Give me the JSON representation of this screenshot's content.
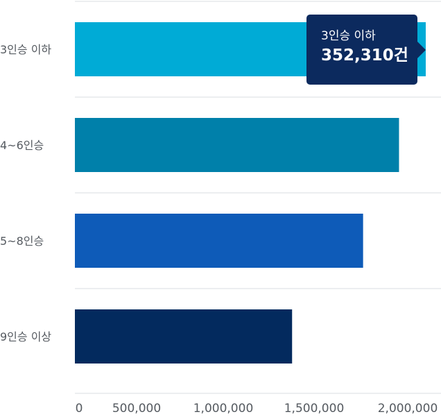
{
  "chart_data": {
    "type": "bar",
    "orientation": "horizontal",
    "categories": [
      "3인승 이하",
      "4~6인승",
      "5~8인승",
      "9인승 이상"
    ],
    "values": [
      2100000,
      1940000,
      1725000,
      1300000
    ],
    "colors": [
      "#00abd6",
      "#0080aa",
      "#0e5bb8",
      "#032a5e"
    ],
    "xlim": [
      0,
      2100000
    ],
    "xticks": [
      0,
      500000,
      1000000,
      1500000,
      2000000
    ],
    "xtick_labels": [
      "0",
      "500,000",
      "1,000,000",
      "1,500,000",
      "2,000,000"
    ],
    "grid": true,
    "title": "",
    "xlabel": "",
    "ylabel": ""
  },
  "tooltip": {
    "category": "3인승 이하",
    "value": "352,310건"
  }
}
